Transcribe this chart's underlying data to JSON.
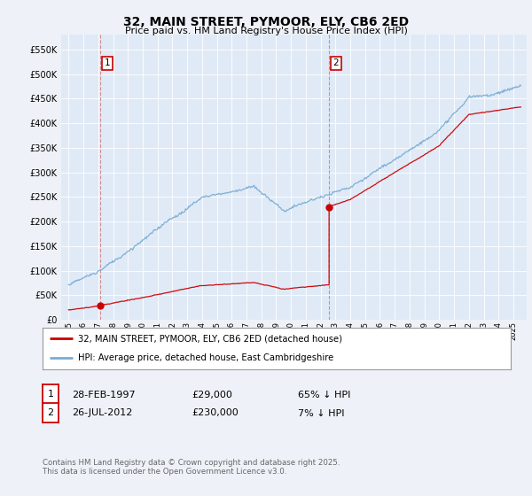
{
  "title": "32, MAIN STREET, PYMOOR, ELY, CB6 2ED",
  "subtitle": "Price paid vs. HM Land Registry's House Price Index (HPI)",
  "background_color": "#eef2f8",
  "plot_bg_color": "#e0eaf6",
  "sale1_date": 1997.16,
  "sale1_price": 29000,
  "sale1_label": "1",
  "sale2_date": 2012.57,
  "sale2_price": 230000,
  "sale2_label": "2",
  "red_line_color": "#cc0000",
  "blue_line_color": "#7aadd4",
  "dashed_line_color": "#cc6666",
  "legend_label_red": "32, MAIN STREET, PYMOOR, ELY, CB6 2ED (detached house)",
  "legend_label_blue": "HPI: Average price, detached house, East Cambridgeshire",
  "table_row1": [
    "1",
    "28-FEB-1997",
    "£29,000",
    "65% ↓ HPI"
  ],
  "table_row2": [
    "2",
    "26-JUL-2012",
    "£230,000",
    "7% ↓ HPI"
  ],
  "footer": "Contains HM Land Registry data © Crown copyright and database right 2025.\nThis data is licensed under the Open Government Licence v3.0.",
  "ylim": [
    0,
    580000
  ],
  "yticks": [
    0,
    50000,
    100000,
    150000,
    200000,
    250000,
    300000,
    350000,
    400000,
    450000,
    500000,
    550000
  ],
  "xlim_left": 1994.5,
  "xlim_right": 2025.9
}
